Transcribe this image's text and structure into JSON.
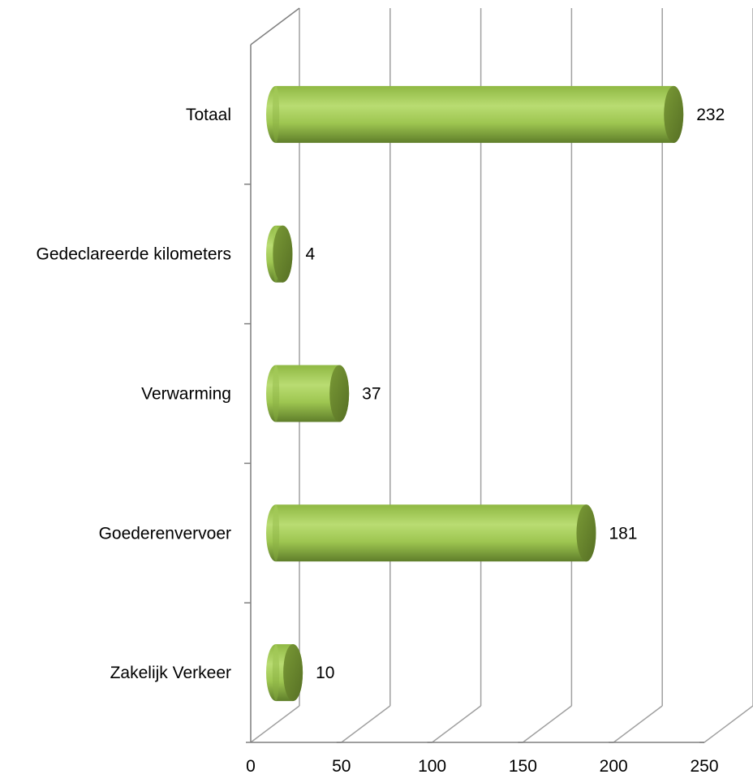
{
  "chart_data": {
    "type": "bar",
    "orientation": "horizontal",
    "style": "3d-cylinder",
    "categories": [
      "Totaal",
      "Gedeclareerde kilometers",
      "Verwarming",
      "Goederenvervoer",
      "Zakelijk Verkeer"
    ],
    "values": [
      232,
      4,
      37,
      181,
      10
    ],
    "data_labels": [
      "232",
      "4",
      "37",
      "181",
      "10"
    ],
    "xlim": [
      0,
      250
    ],
    "xticks": [
      0,
      50,
      100,
      150,
      200,
      250
    ],
    "xtick_labels": [
      "0",
      "50",
      "100",
      "150",
      "200",
      "250"
    ],
    "grid": true,
    "legend": "none",
    "colors": {
      "bar_light": "#b5d96a",
      "bar_mid": "#8fb843",
      "bar_dark": "#5f7e2a",
      "bar_cap": "#6f8f30",
      "grid": "#a0a0a0",
      "axis": "#7f7f7f"
    }
  }
}
